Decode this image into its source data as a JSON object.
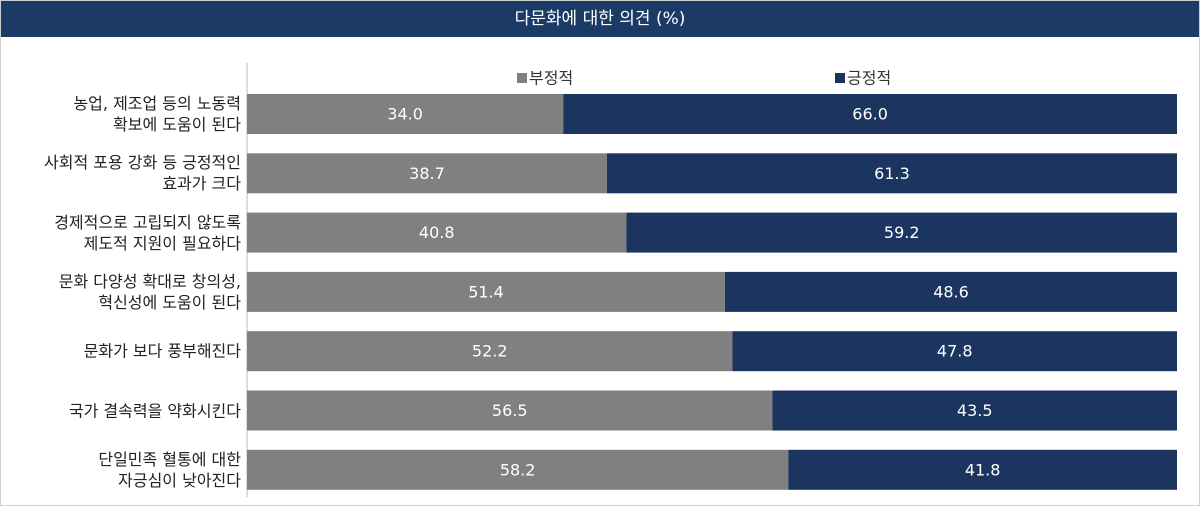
{
  "chart_data": {
    "type": "stacked-bar-horizontal",
    "title": "다문화에 대한 의견 (%)",
    "categories": [
      "농업, 제조업 등의 노동력\n확보에 도움이 된다",
      "사회적 포용 강화 등 긍정적인\n효과가 크다",
      "경제적으로 고립되지 않도록\n제도적 지원이 필요하다",
      "문화 다양성 확대로 창의성,\n혁신성에 도움이 된다",
      "문화가 보다 풍부해진다",
      "국가 결속력을 약화시킨다",
      "단일민족 혈통에 대한\n자긍심이 낮아진다"
    ],
    "series": [
      {
        "name": "부정적",
        "color": "#808080",
        "values": [
          34.0,
          38.7,
          40.8,
          51.4,
          52.2,
          56.5,
          58.2
        ],
        "value_labels": [
          "34.0",
          "38.7",
          "40.8",
          "51.4",
          "52.2",
          "56.5",
          "58.2"
        ]
      },
      {
        "name": "긍정적",
        "color": "#1b3560",
        "values": [
          66.0,
          61.3,
          59.2,
          48.6,
          47.8,
          43.5,
          41.8
        ],
        "value_labels": [
          "66.0",
          "61.3",
          "59.2",
          "48.6",
          "47.8",
          "43.5",
          "41.8"
        ]
      }
    ],
    "xlim": [
      0,
      100
    ]
  }
}
